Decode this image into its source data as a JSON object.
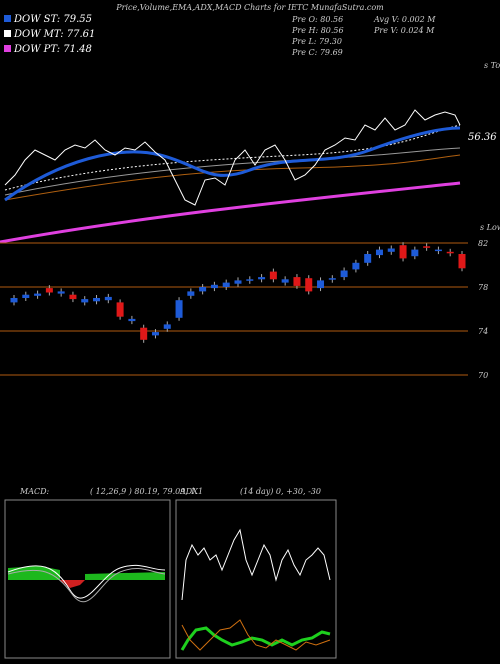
{
  "header": {
    "title": "Price,Volume,EMA,ADX,MACD Charts for IETC MunafaSutra.com",
    "legend": [
      "DOW ST: 79.55",
      "DOW MT: 77.61",
      "DOW PT: 71.48"
    ],
    "info": [
      "Pre  O: 80.56",
      "Avg  V: 0.002  M",
      "Pre  H: 80.56",
      "Pre  V: 0.024  M",
      "Pre  L: 79.30",
      "Pre  C: 79.69"
    ]
  },
  "ema_panel": {
    "label": "56.36",
    "tops": "s Tops",
    "lows": "s Lows"
  },
  "chart_data": {
    "type": "candlestick",
    "ylim": [
      70,
      82
    ],
    "yticks": [
      70,
      74,
      78,
      82
    ],
    "open": [
      76.6,
      77.0,
      77.2,
      77.9,
      77.4,
      77.3,
      76.6,
      76.7,
      76.8,
      76.6,
      74.9,
      74.3,
      73.6,
      74.2,
      75.2,
      77.2,
      77.6,
      77.9,
      78.0,
      78.3,
      78.6,
      78.7,
      79.4,
      78.4,
      78.9,
      78.8,
      77.9,
      78.7,
      78.9,
      79.6,
      80.2,
      80.9,
      81.2,
      81.8,
      80.8,
      81.7,
      81.3,
      81.2,
      81.0
    ],
    "close": [
      77.0,
      77.3,
      77.4,
      77.5,
      77.6,
      76.9,
      76.9,
      77.0,
      77.1,
      75.3,
      75.1,
      73.2,
      73.9,
      74.6,
      76.8,
      77.6,
      78.0,
      78.2,
      78.4,
      78.6,
      78.7,
      78.9,
      78.7,
      78.7,
      78.1,
      77.6,
      78.6,
      78.8,
      79.5,
      80.2,
      81.0,
      81.4,
      81.5,
      80.6,
      81.4,
      81.6,
      81.4,
      81.1,
      79.7
    ]
  },
  "macd": {
    "label": "MACD:",
    "params": "( 12,26,9 ) 80.19, 79.09, 1.1"
  },
  "adx": {
    "label": "ADX",
    "params": "(14  day) 0, +30, -30"
  }
}
